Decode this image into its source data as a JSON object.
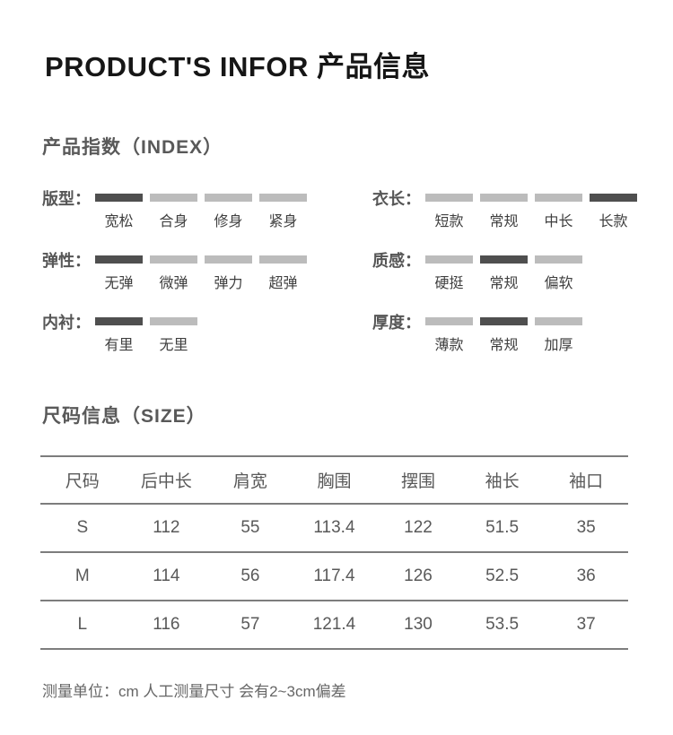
{
  "title": "PRODUCT'S INFOR 产品信息",
  "index_section": {
    "heading": "产品指数（INDEX）",
    "rows": [
      {
        "label": "版型：",
        "selected": 0,
        "options": [
          "宽松",
          "合身",
          "修身",
          "紧身"
        ]
      },
      {
        "label": "衣长：",
        "selected": 3,
        "options": [
          "短款",
          "常规",
          "中长",
          "长款"
        ]
      },
      {
        "label": "弹性：",
        "selected": 0,
        "options": [
          "无弹",
          "微弹",
          "弹力",
          "超弹"
        ]
      },
      {
        "label": "质感：",
        "selected": 1,
        "options": [
          "硬挺",
          "常规",
          "偏软"
        ]
      },
      {
        "label": "内衬：",
        "selected": 0,
        "options": [
          "有里",
          "无里"
        ]
      },
      {
        "label": "厚度：",
        "selected": 1,
        "options": [
          "薄款",
          "常规",
          "加厚"
        ]
      }
    ],
    "colors": {
      "selected_bar": "#4f4f4f",
      "unselected_bar": "#bcbcbc"
    }
  },
  "size_section": {
    "heading": "尺码信息（SIZE）",
    "table": {
      "headers": [
        "尺码",
        "后中长",
        "肩宽",
        "胸围",
        "摆围",
        "袖长",
        "袖口"
      ],
      "rows": [
        [
          "S",
          "112",
          "55",
          "113.4",
          "122",
          "51.5",
          "35"
        ],
        [
          "M",
          "114",
          "56",
          "117.4",
          "126",
          "52.5",
          "36"
        ],
        [
          "L",
          "116",
          "57",
          "121.4",
          "130",
          "53.5",
          "37"
        ]
      ]
    },
    "note": "测量单位：cm  人工测量尺寸 会有2~3cm偏差"
  }
}
